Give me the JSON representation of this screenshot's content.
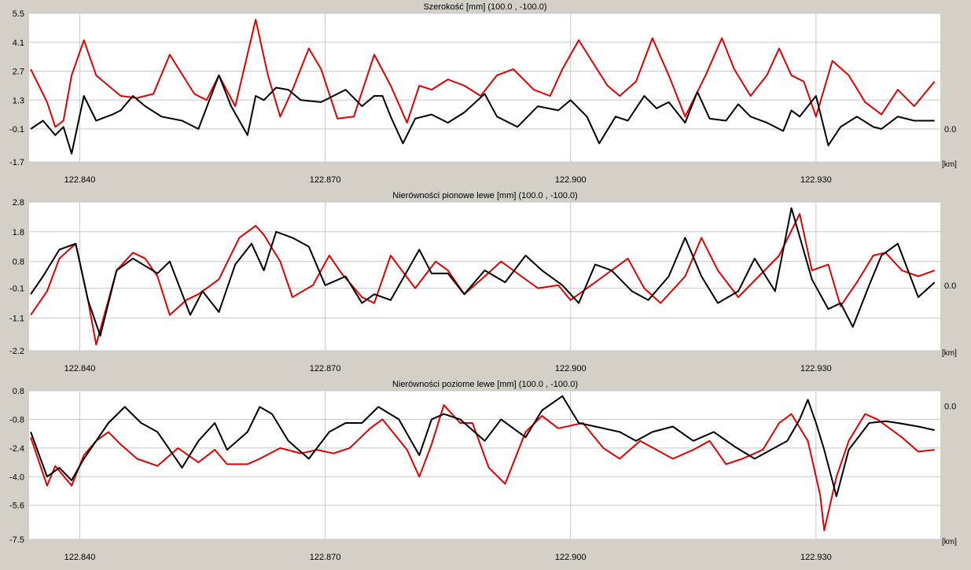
{
  "chart_data": [
    {
      "type": "line",
      "title": "Szerokość [mm]  (100.0 , -100.0)",
      "xunit": "[km]",
      "ref_label": "0.0",
      "ylim": [
        -1.7,
        5.5
      ],
      "yticks": [
        "5.5",
        "4.1",
        "2.7",
        "1.3",
        "-0.1",
        "-1.7"
      ],
      "ytick_values": [
        5.5,
        4.1,
        2.7,
        1.3,
        -0.1,
        -1.7
      ],
      "xticks": [
        "122.840",
        "122.870",
        "122.900",
        "122.930"
      ],
      "xtick_values": [
        122.84,
        122.87,
        122.9,
        122.93
      ],
      "xlim": [
        122.8338,
        122.9452
      ],
      "ref_value": -0.1,
      "colors": {
        "red": "#e00000",
        "black": "#000000",
        "grid": "#c8c8c8"
      },
      "series": [
        {
          "color": "red",
          "x": [
            122.834,
            122.836,
            122.837,
            122.838,
            122.839,
            122.8405,
            122.842,
            122.845,
            122.847,
            122.849,
            122.851,
            122.854,
            122.8555,
            122.857,
            122.859,
            122.8615,
            122.863,
            122.8645,
            122.866,
            122.868,
            122.8695,
            122.8715,
            122.8735,
            122.876,
            122.878,
            122.88,
            122.8815,
            122.883,
            122.885,
            122.887,
            122.889,
            122.891,
            122.893,
            122.8955,
            122.8975,
            122.899,
            122.901,
            122.9045,
            122.906,
            122.908,
            122.91,
            122.912,
            122.914,
            122.9165,
            122.9185,
            122.92,
            122.922,
            122.924,
            122.9255,
            122.927,
            122.9285,
            122.93,
            122.932,
            122.934,
            122.936,
            122.938,
            122.94,
            122.942,
            122.9445
          ],
          "y": [
            2.8,
            1.2,
            0.0,
            0.3,
            2.5,
            4.2,
            2.5,
            1.5,
            1.4,
            1.6,
            3.5,
            1.6,
            1.3,
            2.5,
            1.0,
            5.2,
            2.5,
            0.5,
            1.8,
            3.8,
            2.8,
            0.4,
            0.5,
            3.5,
            2.0,
            0.2,
            2.0,
            1.8,
            2.3,
            2.0,
            1.5,
            2.5,
            2.8,
            1.8,
            1.5,
            2.8,
            4.2,
            2.0,
            1.5,
            2.2,
            4.3,
            2.5,
            0.5,
            2.5,
            4.3,
            2.8,
            1.5,
            2.5,
            3.8,
            2.5,
            2.2,
            0.5,
            3.2,
            2.5,
            1.2,
            0.6,
            1.8,
            1.0,
            2.2
          ]
        },
        {
          "color": "black",
          "x": [
            122.834,
            122.8355,
            122.837,
            122.838,
            122.839,
            122.8405,
            122.842,
            122.844,
            122.845,
            122.8465,
            122.848,
            122.85,
            122.8525,
            122.8545,
            122.857,
            122.8585,
            122.8605,
            122.8615,
            122.8625,
            122.864,
            122.8655,
            122.867,
            122.8695,
            122.871,
            122.8725,
            122.8745,
            122.876,
            122.877,
            122.878,
            122.8795,
            122.881,
            122.883,
            122.885,
            122.887,
            122.8895,
            122.891,
            122.8935,
            122.896,
            122.8985,
            122.9,
            122.902,
            122.9035,
            122.9055,
            122.907,
            122.909,
            122.9105,
            122.912,
            122.914,
            122.9155,
            122.917,
            122.919,
            122.9205,
            122.922,
            122.924,
            122.926,
            122.927,
            122.928,
            122.93,
            122.9315,
            122.933,
            122.935,
            122.937,
            122.938,
            122.94,
            122.942,
            122.9445
          ],
          "y": [
            -0.1,
            0.3,
            -0.4,
            0.0,
            -1.3,
            1.5,
            0.3,
            0.6,
            0.8,
            1.5,
            1.0,
            0.5,
            0.3,
            -0.1,
            2.5,
            1.0,
            -0.4,
            1.5,
            1.3,
            1.9,
            1.8,
            1.3,
            1.2,
            1.5,
            1.8,
            1.0,
            1.5,
            1.5,
            0.5,
            -0.8,
            0.4,
            0.6,
            0.2,
            0.7,
            1.6,
            0.5,
            0.0,
            1.0,
            0.8,
            1.3,
            0.5,
            -0.8,
            0.5,
            0.3,
            1.5,
            0.9,
            1.2,
            0.2,
            1.7,
            0.4,
            0.3,
            1.1,
            0.5,
            0.2,
            -0.2,
            0.8,
            0.5,
            1.5,
            -0.9,
            0.0,
            0.5,
            0.0,
            -0.1,
            0.5,
            0.3,
            0.3
          ]
        }
      ]
    },
    {
      "type": "line",
      "title": "Nierówności pionowe lewe [mm]  (100.0 , -100.0)",
      "xunit": "[km]",
      "ref_label": "0.0",
      "ylim": [
        -2.2,
        2.8
      ],
      "yticks": [
        "2.8",
        "1.8",
        "0.8",
        "-0.1",
        "-1.1",
        "-2.2"
      ],
      "ytick_values": [
        2.8,
        1.8,
        0.8,
        -0.1,
        -1.1,
        -2.2
      ],
      "xticks": [
        "122.840",
        "122.870",
        "122.900",
        "122.930"
      ],
      "xtick_values": [
        122.84,
        122.87,
        122.9,
        122.93
      ],
      "xlim": [
        122.8338,
        122.9452
      ],
      "ref_value": 0.0,
      "colors": {
        "red": "#e00000",
        "black": "#000000",
        "grid": "#c8c8c8"
      },
      "series": [
        {
          "color": "red",
          "x": [
            122.834,
            122.836,
            122.8375,
            122.8395,
            122.841,
            122.842,
            122.8445,
            122.8465,
            122.848,
            122.8495,
            122.851,
            122.853,
            122.8545,
            122.857,
            122.8595,
            122.8615,
            122.8625,
            122.8645,
            122.866,
            122.8685,
            122.8705,
            122.872,
            122.8745,
            122.876,
            122.878,
            122.881,
            122.8835,
            122.885,
            122.887,
            122.8895,
            122.8915,
            122.894,
            122.896,
            122.8985,
            122.9,
            122.903,
            122.905,
            122.907,
            122.909,
            122.911,
            122.914,
            122.916,
            122.918,
            122.9205,
            122.923,
            122.9255,
            122.928,
            122.9295,
            122.9315,
            122.933,
            122.935,
            122.937,
            122.9385,
            122.9405,
            122.9425,
            122.9445
          ],
          "y": [
            -1.0,
            -0.2,
            0.9,
            1.4,
            -0.5,
            -2.0,
            0.5,
            1.1,
            0.9,
            0.3,
            -1.0,
            -0.5,
            -0.3,
            0.2,
            1.6,
            2.0,
            1.7,
            0.8,
            -0.4,
            0.0,
            1.0,
            0.4,
            -0.4,
            -0.6,
            1.0,
            -0.1,
            0.8,
            0.5,
            -0.3,
            0.3,
            0.8,
            0.3,
            -0.1,
            0.0,
            -0.5,
            0.1,
            0.5,
            0.9,
            -0.1,
            -0.6,
            0.3,
            1.6,
            0.5,
            -0.4,
            0.3,
            1.0,
            2.4,
            0.5,
            0.7,
            -0.7,
            0.1,
            1.0,
            1.1,
            0.5,
            0.3,
            0.5
          ]
        },
        {
          "color": "black",
          "x": [
            122.834,
            122.8355,
            122.8375,
            122.8395,
            122.841,
            122.8425,
            122.8445,
            122.8465,
            122.8495,
            122.851,
            122.8535,
            122.855,
            122.857,
            122.859,
            122.861,
            122.8625,
            122.864,
            122.866,
            122.868,
            122.87,
            122.8725,
            122.8745,
            122.876,
            122.878,
            122.8815,
            122.883,
            122.885,
            122.887,
            122.8895,
            122.892,
            122.8945,
            122.8965,
            122.899,
            122.901,
            122.903,
            122.905,
            122.9075,
            122.9095,
            122.912,
            122.914,
            122.916,
            122.918,
            122.9205,
            122.9225,
            122.925,
            122.927,
            122.9295,
            122.9315,
            122.933,
            122.9345,
            122.9365,
            122.938,
            122.94,
            122.9425,
            122.9445
          ],
          "y": [
            -0.3,
            0.3,
            1.2,
            1.4,
            -0.5,
            -1.7,
            0.5,
            0.9,
            0.4,
            0.8,
            -1.0,
            -0.2,
            -0.9,
            0.7,
            1.4,
            0.5,
            1.8,
            1.6,
            1.3,
            0.0,
            0.3,
            -0.6,
            -0.3,
            -0.5,
            1.2,
            0.4,
            0.4,
            -0.3,
            0.5,
            0.1,
            1.0,
            0.5,
            0.0,
            -0.6,
            0.7,
            0.5,
            -0.2,
            -0.5,
            0.3,
            1.6,
            0.3,
            -0.6,
            -0.2,
            0.9,
            -0.2,
            2.6,
            0.2,
            -0.8,
            -0.6,
            -1.4,
            0.0,
            1.0,
            1.4,
            -0.4,
            0.1
          ]
        }
      ]
    },
    {
      "type": "line",
      "title": "Nierówności poziome lewe [mm]  (100.0 , -100.0)",
      "xunit": "[km]",
      "ref_label": "0.0",
      "ylim": [
        -7.5,
        0.8
      ],
      "yticks": [
        "0.8",
        "-0.8",
        "-2.4",
        "-4.0",
        "-5.6",
        "-7.5"
      ],
      "ytick_values": [
        0.8,
        -0.8,
        -2.4,
        -4.0,
        -5.6,
        -7.5
      ],
      "xticks": [
        "122.840",
        "122.870",
        "122.900",
        "122.930"
      ],
      "xtick_values": [
        122.84,
        122.87,
        122.9,
        122.93
      ],
      "xlim": [
        122.8338,
        122.9452
      ],
      "ref_value": -0.05,
      "colors": {
        "red": "#e00000",
        "black": "#000000",
        "grid": "#c8c8c8"
      },
      "series": [
        {
          "color": "red",
          "x": [
            122.834,
            122.836,
            122.837,
            122.839,
            122.8405,
            122.842,
            122.8435,
            122.845,
            122.847,
            122.8495,
            122.852,
            122.8545,
            122.8565,
            122.858,
            122.8605,
            122.862,
            122.8645,
            122.867,
            122.869,
            122.871,
            122.873,
            122.8755,
            122.877,
            122.88,
            122.8815,
            122.883,
            122.8845,
            122.8865,
            122.888,
            122.89,
            122.892,
            122.8945,
            122.8965,
            122.8985,
            122.9015,
            122.904,
            122.906,
            122.9085,
            122.9105,
            122.9125,
            122.915,
            122.917,
            122.919,
            122.921,
            122.9235,
            122.9255,
            122.927,
            122.929,
            122.9305,
            122.931,
            122.9325,
            122.934,
            122.936,
            122.9375,
            122.9405,
            122.9425,
            122.9445
          ],
          "y": [
            -1.8,
            -4.5,
            -3.4,
            -4.5,
            -2.8,
            -2.0,
            -1.5,
            -2.2,
            -3.0,
            -3.4,
            -2.4,
            -3.2,
            -2.5,
            -3.3,
            -3.3,
            -3.0,
            -2.4,
            -2.7,
            -2.5,
            -2.7,
            -2.4,
            -1.3,
            -0.8,
            -2.5,
            -4.0,
            -2.2,
            0.0,
            -1.0,
            -1.0,
            -3.5,
            -4.4,
            -1.5,
            -0.6,
            -1.3,
            -1.0,
            -2.4,
            -3.0,
            -2.0,
            -2.5,
            -3.0,
            -2.5,
            -2.0,
            -3.3,
            -3.0,
            -2.5,
            -1.0,
            -0.5,
            -2.0,
            -5.0,
            -7.0,
            -4.0,
            -2.0,
            -0.5,
            -0.8,
            -1.8,
            -2.6,
            -2.5
          ]
        },
        {
          "color": "black",
          "x": [
            122.834,
            122.836,
            122.8375,
            122.839,
            122.8405,
            122.842,
            122.8435,
            122.8455,
            122.8475,
            122.8495,
            122.8525,
            122.8545,
            122.8565,
            122.858,
            122.8605,
            122.862,
            122.8635,
            122.8655,
            122.868,
            122.8705,
            122.8725,
            122.8745,
            122.8765,
            122.879,
            122.8815,
            122.883,
            122.8845,
            122.8865,
            122.8895,
            122.8915,
            122.8945,
            122.8965,
            122.899,
            122.901,
            122.903,
            122.906,
            122.908,
            122.91,
            122.9125,
            122.915,
            122.9175,
            122.92,
            122.9225,
            122.9245,
            122.9265,
            122.928,
            122.929,
            122.93,
            122.931,
            122.9325,
            122.934,
            122.9365,
            122.9385,
            122.94,
            122.9425,
            122.9445
          ],
          "y": [
            -1.5,
            -4.0,
            -3.5,
            -4.2,
            -3.0,
            -2.0,
            -1.0,
            -0.1,
            -1.0,
            -1.5,
            -3.5,
            -2.0,
            -1.0,
            -2.5,
            -1.5,
            -0.1,
            -0.5,
            -2.0,
            -3.0,
            -1.5,
            -1.0,
            -1.0,
            -0.1,
            -0.8,
            -2.8,
            -0.8,
            -0.5,
            -0.8,
            -2.0,
            -0.8,
            -1.8,
            -0.3,
            0.5,
            -1.0,
            -1.2,
            -1.5,
            -2.0,
            -1.5,
            -1.2,
            -2.0,
            -1.5,
            -2.3,
            -3.0,
            -2.5,
            -2.0,
            -0.8,
            0.3,
            -1.0,
            -2.5,
            -5.1,
            -2.5,
            -1.0,
            -0.9,
            -1.0,
            -1.2,
            -1.4
          ]
        }
      ]
    }
  ]
}
